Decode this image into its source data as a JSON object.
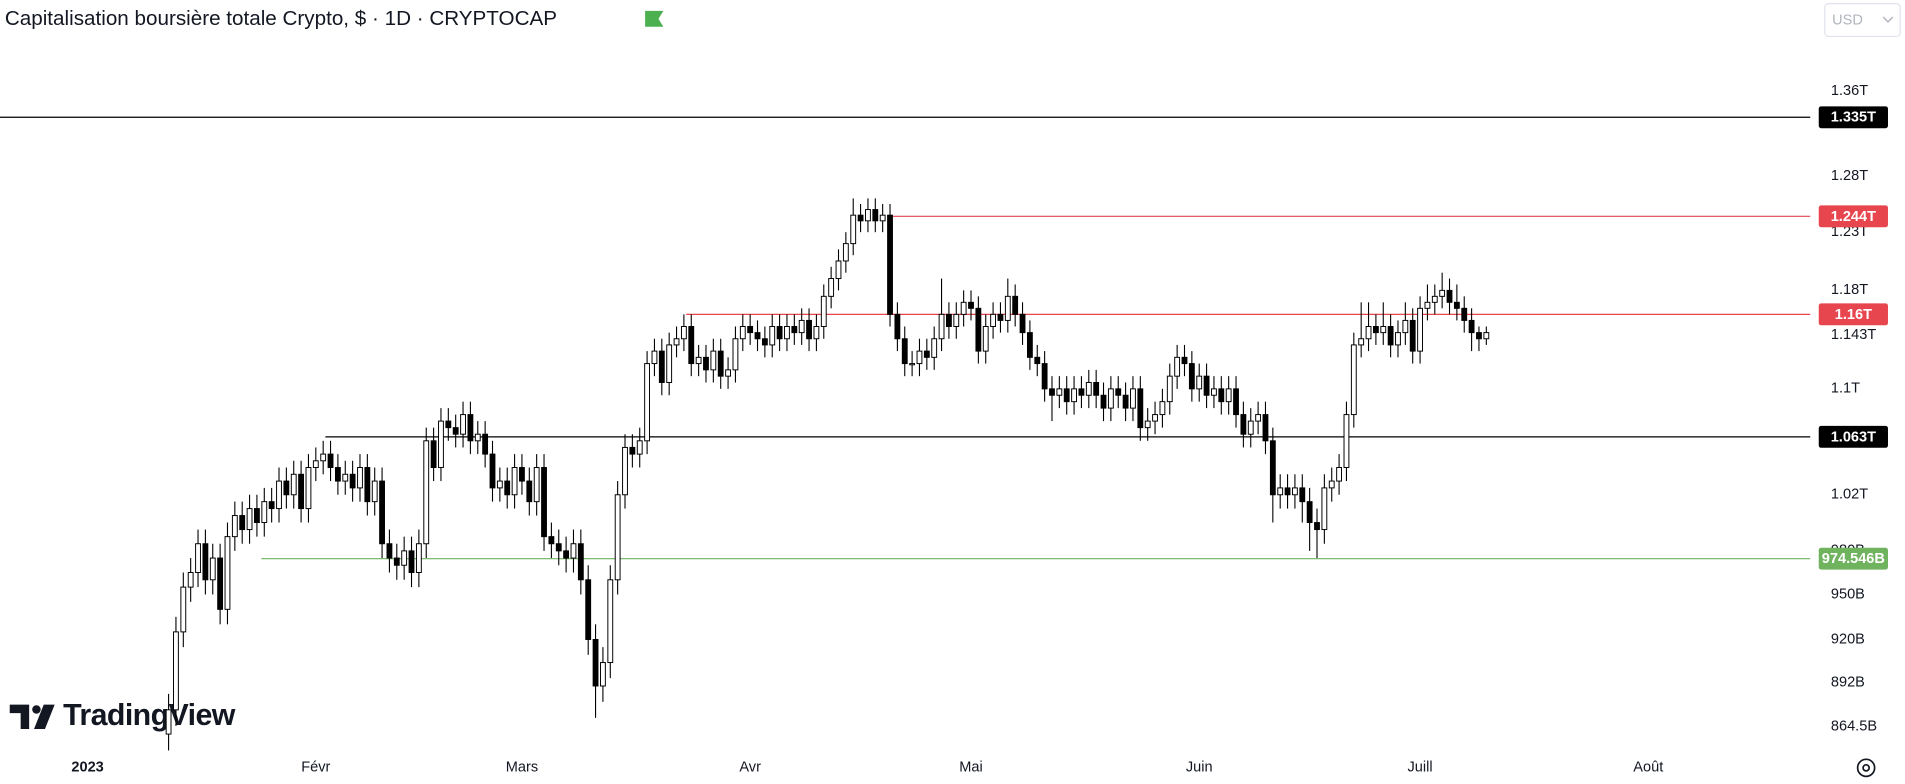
{
  "chart_data": {
    "type": "candlestick",
    "title": "Capitalisation boursière totale Crypto, $ · 1D · CRYPTOCAP",
    "currency": "USD",
    "brand": "TradingView",
    "log_scale": true,
    "up_color": "#ffffff",
    "down_color": "#000000",
    "wick_color": "#000000",
    "xlim": [
      -11.9,
      234
    ],
    "xticks": [
      {
        "value": 0,
        "label": "2023"
      },
      {
        "value": 31,
        "label": "Févr"
      },
      {
        "value": 59,
        "label": "Mars"
      },
      {
        "value": 90,
        "label": "Avr"
      },
      {
        "value": 120,
        "label": "Mai"
      },
      {
        "value": 151,
        "label": "Juin"
      },
      {
        "value": 181,
        "label": "Juill"
      },
      {
        "value": 212,
        "label": "Août"
      }
    ],
    "ylim": [
      0.852,
      1.402
    ],
    "yticks": [
      {
        "value": 1.36,
        "label": "1.36T"
      },
      {
        "value": 1.28,
        "label": "1.28T"
      },
      {
        "value": 1.23,
        "label": "1.23T"
      },
      {
        "value": 1.18,
        "label": "1.18T"
      },
      {
        "value": 1.143,
        "label": "1.143T"
      },
      {
        "value": 1.1,
        "label": "1.1T"
      },
      {
        "value": 1.02,
        "label": "1.02T"
      },
      {
        "value": 0.98,
        "label": "980B"
      },
      {
        "value": 0.95,
        "label": "950B"
      },
      {
        "value": 0.92,
        "label": "920B"
      },
      {
        "value": 0.892,
        "label": "892B"
      },
      {
        "value": 0.8645,
        "label": "864.5B"
      }
    ],
    "levels": [
      {
        "value": 1.335,
        "label": "1.335T",
        "color": "#000000",
        "start": -11.9
      },
      {
        "value": 1.244,
        "label": "1.244T",
        "color": "#e8464f",
        "start": 108.6
      },
      {
        "value": 1.16,
        "label": "1.16T",
        "color": "#e8464f",
        "start": 81.3
      },
      {
        "value": 1.063,
        "label": "1.063T",
        "color": "#000000",
        "start": 32.3
      },
      {
        "value": 0.974546,
        "label": "974.546B",
        "color": "#6fb35f",
        "start": 23.6
      }
    ],
    "x": [
      11,
      12,
      13,
      14,
      15,
      16,
      17,
      18,
      19,
      20,
      21,
      22,
      23,
      24,
      25,
      26,
      27,
      28,
      29,
      30,
      31,
      32,
      33,
      34,
      35,
      36,
      37,
      38,
      39,
      40,
      41,
      42,
      43,
      44,
      45,
      46,
      47,
      48,
      49,
      50,
      51,
      52,
      53,
      54,
      55,
      56,
      57,
      58,
      59,
      60,
      61,
      62,
      63,
      64,
      65,
      66,
      67,
      68,
      69,
      70,
      71,
      72,
      73,
      74,
      75,
      76,
      77,
      78,
      79,
      80,
      81,
      82,
      83,
      84,
      85,
      86,
      87,
      88,
      89,
      90,
      91,
      92,
      93,
      94,
      95,
      96,
      97,
      98,
      99,
      100,
      101,
      102,
      103,
      104,
      105,
      106,
      107,
      108,
      109,
      110,
      111,
      112,
      113,
      114,
      115,
      116,
      117,
      118,
      119,
      120,
      121,
      122,
      123,
      124,
      125,
      126,
      127,
      128,
      129,
      130,
      131,
      132,
      133,
      134,
      135,
      136,
      137,
      138,
      139,
      140,
      141,
      142,
      143,
      144,
      145,
      146,
      147,
      148,
      149,
      150,
      151,
      152,
      153,
      154,
      155,
      156,
      157,
      158,
      159,
      160,
      161,
      162,
      163,
      164,
      165,
      166,
      167,
      168,
      169,
      170,
      171,
      172,
      173,
      174,
      175,
      176,
      177,
      178,
      179,
      180,
      181,
      182,
      183,
      184,
      185,
      186,
      187,
      188,
      189,
      190
    ],
    "open": [
      0.86,
      0.875,
      0.925,
      0.955,
      0.965,
      0.985,
      0.96,
      0.975,
      0.94,
      0.99,
      1.005,
      0.995,
      1.01,
      1.0,
      1.015,
      1.01,
      1.03,
      1.02,
      1.035,
      1.01,
      1.04,
      1.045,
      1.05,
      1.04,
      1.03,
      1.035,
      1.025,
      1.04,
      1.015,
      1.03,
      0.985,
      0.975,
      0.97,
      0.98,
      0.965,
      0.985,
      1.06,
      1.04,
      1.075,
      1.07,
      1.065,
      1.08,
      1.06,
      1.065,
      1.05,
      1.025,
      1.03,
      1.02,
      1.04,
      1.03,
      1.015,
      1.04,
      0.99,
      0.985,
      0.98,
      0.975,
      0.985,
      0.96,
      0.92,
      0.89,
      0.905,
      0.96,
      1.02,
      1.055,
      1.05,
      1.06,
      1.12,
      1.13,
      1.105,
      1.135,
      1.14,
      1.15,
      1.12,
      1.125,
      1.115,
      1.13,
      1.11,
      1.115,
      1.14,
      1.15,
      1.145,
      1.14,
      1.135,
      1.15,
      1.14,
      1.15,
      1.145,
      1.155,
      1.14,
      1.15,
      1.175,
      1.19,
      1.205,
      1.22,
      1.245,
      1.24,
      1.25,
      1.24,
      1.245,
      1.16,
      1.14,
      1.12,
      1.12,
      1.13,
      1.125,
      1.14,
      1.16,
      1.15,
      1.16,
      1.17,
      1.165,
      1.13,
      1.15,
      1.16,
      1.155,
      1.175,
      1.16,
      1.145,
      1.125,
      1.12,
      1.1,
      1.095,
      1.1,
      1.09,
      1.1,
      1.095,
      1.105,
      1.095,
      1.085,
      1.1,
      1.095,
      1.085,
      1.1,
      1.07,
      1.075,
      1.08,
      1.09,
      1.11,
      1.125,
      1.12,
      1.1,
      1.11,
      1.095,
      1.1,
      1.09,
      1.1,
      1.08,
      1.065,
      1.075,
      1.08,
      1.06,
      1.02,
      1.025,
      1.02,
      1.025,
      1.015,
      1.0,
      0.995,
      1.025,
      1.03,
      1.04,
      1.08,
      1.135,
      1.14,
      1.15,
      1.145,
      1.15,
      1.135,
      1.145,
      1.155,
      1.13,
      1.165,
      1.17,
      1.175,
      1.18,
      1.17,
      1.165,
      1.155,
      1.145,
      1.14
    ],
    "high": [
      0.885,
      0.935,
      0.965,
      0.975,
      0.995,
      0.995,
      0.985,
      0.985,
      1.0,
      1.015,
      1.015,
      1.02,
      1.02,
      1.025,
      1.025,
      1.04,
      1.04,
      1.045,
      1.045,
      1.05,
      1.055,
      1.06,
      1.06,
      1.05,
      1.045,
      1.045,
      1.05,
      1.05,
      1.04,
      1.04,
      0.995,
      0.985,
      0.99,
      0.99,
      0.995,
      1.07,
      1.07,
      1.085,
      1.085,
      1.08,
      1.09,
      1.09,
      1.075,
      1.075,
      1.06,
      1.04,
      1.04,
      1.05,
      1.05,
      1.04,
      1.05,
      1.05,
      1.0,
      0.995,
      0.99,
      0.995,
      0.995,
      0.97,
      0.93,
      0.915,
      0.97,
      1.03,
      1.065,
      1.065,
      1.07,
      1.13,
      1.14,
      1.14,
      1.145,
      1.15,
      1.16,
      1.16,
      1.135,
      1.135,
      1.14,
      1.14,
      1.125,
      1.15,
      1.16,
      1.16,
      1.155,
      1.15,
      1.16,
      1.16,
      1.16,
      1.16,
      1.165,
      1.165,
      1.16,
      1.185,
      1.2,
      1.215,
      1.23,
      1.26,
      1.255,
      1.26,
      1.26,
      1.255,
      1.255,
      1.17,
      1.15,
      1.13,
      1.14,
      1.14,
      1.15,
      1.19,
      1.17,
      1.17,
      1.18,
      1.18,
      1.175,
      1.16,
      1.17,
      1.17,
      1.19,
      1.185,
      1.17,
      1.155,
      1.135,
      1.13,
      1.11,
      1.11,
      1.11,
      1.11,
      1.11,
      1.115,
      1.115,
      1.105,
      1.11,
      1.11,
      1.105,
      1.11,
      1.11,
      1.085,
      1.09,
      1.1,
      1.12,
      1.135,
      1.135,
      1.13,
      1.12,
      1.12,
      1.11,
      1.11,
      1.11,
      1.11,
      1.09,
      1.085,
      1.09,
      1.09,
      1.07,
      1.035,
      1.035,
      1.035,
      1.035,
      1.025,
      1.01,
      1.035,
      1.04,
      1.05,
      1.09,
      1.145,
      1.17,
      1.17,
      1.16,
      1.17,
      1.16,
      1.155,
      1.17,
      1.165,
      1.175,
      1.185,
      1.185,
      1.195,
      1.19,
      1.185,
      1.175,
      1.165,
      1.15,
      1.15
    ],
    "low": [
      0.85,
      0.865,
      0.915,
      0.945,
      0.955,
      0.95,
      0.95,
      0.93,
      0.93,
      0.98,
      0.985,
      0.985,
      0.99,
      0.99,
      1.0,
      1.0,
      1.01,
      1.01,
      1.0,
      1.0,
      1.03,
      1.035,
      1.03,
      1.02,
      1.02,
      1.015,
      1.015,
      1.005,
      1.005,
      0.975,
      0.965,
      0.96,
      0.96,
      0.955,
      0.955,
      0.975,
      1.03,
      1.03,
      1.06,
      1.055,
      1.055,
      1.05,
      1.05,
      1.04,
      1.015,
      1.015,
      1.01,
      1.01,
      1.02,
      1.005,
      1.005,
      0.98,
      0.975,
      0.97,
      0.965,
      0.965,
      0.95,
      0.91,
      0.87,
      0.88,
      0.895,
      0.95,
      1.01,
      1.04,
      1.04,
      1.05,
      1.11,
      1.095,
      1.095,
      1.125,
      1.13,
      1.11,
      1.11,
      1.105,
      1.105,
      1.1,
      1.1,
      1.105,
      1.13,
      1.135,
      1.13,
      1.125,
      1.125,
      1.13,
      1.13,
      1.135,
      1.135,
      1.13,
      1.13,
      1.14,
      1.165,
      1.18,
      1.195,
      1.21,
      1.23,
      1.23,
      1.23,
      1.23,
      1.15,
      1.13,
      1.11,
      1.11,
      1.11,
      1.115,
      1.115,
      1.13,
      1.14,
      1.14,
      1.15,
      1.155,
      1.12,
      1.12,
      1.14,
      1.145,
      1.145,
      1.15,
      1.135,
      1.115,
      1.11,
      1.09,
      1.075,
      1.085,
      1.08,
      1.08,
      1.085,
      1.085,
      1.085,
      1.075,
      1.075,
      1.085,
      1.075,
      1.075,
      1.06,
      1.06,
      1.065,
      1.07,
      1.08,
      1.1,
      1.11,
      1.09,
      1.09,
      1.085,
      1.085,
      1.08,
      1.08,
      1.07,
      1.055,
      1.055,
      1.065,
      1.05,
      1.0,
      1.01,
      1.01,
      1.01,
      1.0,
      0.98,
      0.975,
      0.985,
      1.015,
      1.02,
      1.03,
      1.07,
      1.125,
      1.13,
      1.135,
      1.135,
      1.125,
      1.125,
      1.135,
      1.12,
      1.12,
      1.155,
      1.16,
      1.165,
      1.16,
      1.155,
      1.145,
      1.13,
      1.13,
      1.135
    ],
    "close": [
      0.875,
      0.925,
      0.955,
      0.965,
      0.985,
      0.96,
      0.975,
      0.94,
      0.99,
      1.005,
      0.995,
      1.01,
      1.0,
      1.015,
      1.01,
      1.03,
      1.02,
      1.035,
      1.01,
      1.04,
      1.045,
      1.05,
      1.04,
      1.03,
      1.035,
      1.025,
      1.04,
      1.015,
      1.03,
      0.985,
      0.975,
      0.97,
      0.98,
      0.965,
      0.985,
      1.06,
      1.04,
      1.075,
      1.07,
      1.065,
      1.08,
      1.06,
      1.065,
      1.05,
      1.025,
      1.03,
      1.02,
      1.04,
      1.03,
      1.015,
      1.04,
      0.99,
      0.985,
      0.98,
      0.975,
      0.985,
      0.96,
      0.92,
      0.89,
      0.905,
      0.96,
      1.02,
      1.055,
      1.05,
      1.06,
      1.12,
      1.13,
      1.105,
      1.135,
      1.14,
      1.15,
      1.12,
      1.125,
      1.115,
      1.13,
      1.11,
      1.115,
      1.14,
      1.15,
      1.145,
      1.14,
      1.135,
      1.15,
      1.14,
      1.15,
      1.145,
      1.155,
      1.14,
      1.15,
      1.175,
      1.19,
      1.205,
      1.22,
      1.245,
      1.24,
      1.25,
      1.24,
      1.245,
      1.16,
      1.14,
      1.12,
      1.12,
      1.13,
      1.125,
      1.14,
      1.16,
      1.15,
      1.16,
      1.17,
      1.165,
      1.13,
      1.15,
      1.16,
      1.155,
      1.175,
      1.16,
      1.145,
      1.125,
      1.12,
      1.1,
      1.095,
      1.1,
      1.09,
      1.1,
      1.095,
      1.105,
      1.095,
      1.085,
      1.1,
      1.095,
      1.085,
      1.1,
      1.07,
      1.075,
      1.08,
      1.09,
      1.11,
      1.125,
      1.12,
      1.1,
      1.11,
      1.095,
      1.1,
      1.09,
      1.1,
      1.08,
      1.065,
      1.075,
      1.08,
      1.06,
      1.02,
      1.025,
      1.02,
      1.025,
      1.015,
      1.0,
      0.995,
      1.025,
      1.03,
      1.04,
      1.08,
      1.135,
      1.14,
      1.15,
      1.145,
      1.15,
      1.135,
      1.145,
      1.155,
      1.13,
      1.165,
      1.17,
      1.175,
      1.18,
      1.17,
      1.165,
      1.155,
      1.145,
      1.14,
      1.145
    ]
  }
}
